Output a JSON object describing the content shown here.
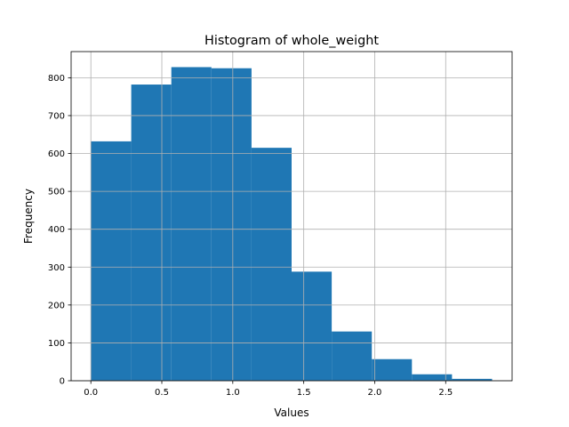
{
  "chart_data": {
    "type": "bar",
    "title": "Histogram of whole_weight",
    "xlabel": "Values",
    "ylabel": "Frequency",
    "bin_edges": [
      0.002,
      0.2845,
      0.567,
      0.8495,
      1.132,
      1.4145,
      1.697,
      1.9795,
      2.262,
      2.5445,
      2.827
    ],
    "values": [
      632,
      782,
      828,
      825,
      615,
      288,
      130,
      57,
      17,
      5
    ],
    "xlim": [
      -0.139,
      2.968
    ],
    "ylim": [
      0,
      869
    ],
    "xticks": [
      0.0,
      0.5,
      1.0,
      1.5,
      2.0,
      2.5
    ],
    "xtick_labels": [
      "0.0",
      "0.5",
      "1.0",
      "1.5",
      "2.0",
      "2.5"
    ],
    "yticks": [
      0,
      100,
      200,
      300,
      400,
      500,
      600,
      700,
      800
    ],
    "ytick_labels": [
      "0",
      "100",
      "200",
      "300",
      "400",
      "500",
      "600",
      "700",
      "800"
    ],
    "bar_color": "#1f77b4",
    "grid": true,
    "grid_color": "#b0b0b0",
    "legend": false
  }
}
